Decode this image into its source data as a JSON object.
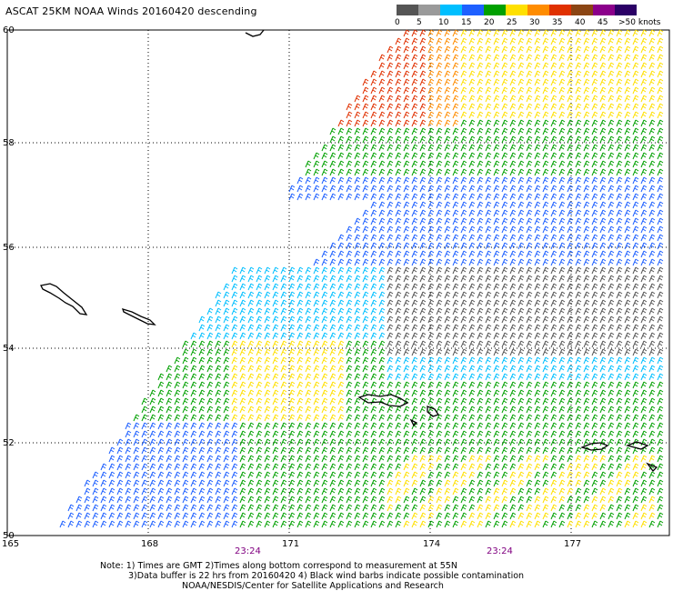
{
  "title": "ASCAT 25KM NOAA Winds 20160420 descending",
  "legend": {
    "labels": [
      "0",
      "5",
      "10",
      "15",
      "20",
      "25",
      "30",
      "35",
      "40",
      "45",
      ">50 knots"
    ],
    "colors": [
      "#555555",
      "#9a9a9a",
      "#00bfff",
      "#1e60ff",
      "#00a000",
      "#ffe000",
      "#ff8c00",
      "#e03000",
      "#8b4513",
      "#8b008b",
      "#2b0066"
    ]
  },
  "axes": {
    "lat_labels": [
      "60",
      "58",
      "56",
      "54",
      "52",
      "50"
    ],
    "lon_labels": [
      "165",
      "168",
      "171",
      "174",
      "177"
    ]
  },
  "times": [
    "23:24",
    "23:24"
  ],
  "notes": [
    "Note: 1) Times are GMT 2)Times along bottom correspond to measurement at 55N",
    "3)Data buffer is 22 hrs from 20160420 4) Black wind barbs indicate possible contamination",
    "NOAA/NESDIS/Center for Satellite Applications and Research"
  ],
  "map": {
    "islands": [
      "island-kamchatka-tip-icon",
      "island-bering-icon",
      "island-medny-icon",
      "island-attu-icon",
      "island-kiska-icon",
      "island-amchitka-icon"
    ],
    "grid": "dotted"
  }
}
